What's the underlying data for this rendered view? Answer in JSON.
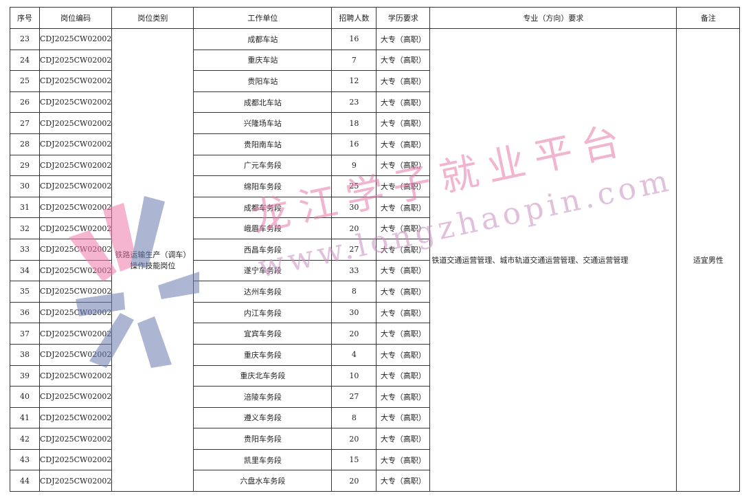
{
  "headers": [
    "序号",
    "岗位编码",
    "岗位类别",
    "工作单位",
    "招聘人数",
    "学历要求",
    "专业（方向）要求",
    "备注"
  ],
  "job_category": "铁路运输生产（调车）操作技能岗位",
  "major_requirement": "铁道交通运营管理、城市轨道交通运营管理、交通运营管理",
  "remark": "适宜男性",
  "rows": [
    {
      "no": "23",
      "code": "CDJ2025CW02002",
      "unit": "成都车站",
      "count": "16",
      "edu": "大专（高职）"
    },
    {
      "no": "24",
      "code": "CDJ2025CW02002",
      "unit": "重庆车站",
      "count": "7",
      "edu": "大专（高职）"
    },
    {
      "no": "25",
      "code": "CDJ2025CW02002",
      "unit": "贵阳车站",
      "count": "12",
      "edu": "大专（高职）"
    },
    {
      "no": "26",
      "code": "CDJ2025CW02002",
      "unit": "成都北车站",
      "count": "23",
      "edu": "大专（高职）"
    },
    {
      "no": "27",
      "code": "CDJ2025CW02002",
      "unit": "兴隆场车站",
      "count": "18",
      "edu": "大专（高职）"
    },
    {
      "no": "28",
      "code": "CDJ2025CW02002",
      "unit": "贵阳南车站",
      "count": "16",
      "edu": "大专（高职）"
    },
    {
      "no": "29",
      "code": "CDJ2025CW02002",
      "unit": "广元车务段",
      "count": "9",
      "edu": "大专（高职）"
    },
    {
      "no": "30",
      "code": "CDJ2025CW02002",
      "unit": "绵阳车务段",
      "count": "25",
      "edu": "大专（高职）"
    },
    {
      "no": "31",
      "code": "CDJ2025CW02002",
      "unit": "成都车务段",
      "count": "30",
      "edu": "大专（高职）"
    },
    {
      "no": "32",
      "code": "CDJ2025CW02002",
      "unit": "峨眉车务段",
      "count": "20",
      "edu": "大专（高职）"
    },
    {
      "no": "33",
      "code": "CDJ2025CW02002",
      "unit": "西昌车务段",
      "count": "27",
      "edu": "大专（高职）"
    },
    {
      "no": "34",
      "code": "CDJ2025CW02002",
      "unit": "遂宁车务段",
      "count": "33",
      "edu": "大专（高职）"
    },
    {
      "no": "35",
      "code": "CDJ2025CW02002",
      "unit": "达州车务段",
      "count": "8",
      "edu": "大专（高职）"
    },
    {
      "no": "36",
      "code": "CDJ2025CW02002",
      "unit": "内江车务段",
      "count": "30",
      "edu": "大专（高职）"
    },
    {
      "no": "37",
      "code": "CDJ2025CW02002",
      "unit": "宜宾车务段",
      "count": "20",
      "edu": "大专（高职）"
    },
    {
      "no": "38",
      "code": "CDJ2025CW02002",
      "unit": "重庆车务段",
      "count": "4",
      "edu": "大专（高职）"
    },
    {
      "no": "39",
      "code": "CDJ2025CW02002",
      "unit": "重庆北车务段",
      "count": "10",
      "edu": "大专（高职）"
    },
    {
      "no": "40",
      "code": "CDJ2025CW02002",
      "unit": "涪陵车务段",
      "count": "27",
      "edu": "大专（高职）"
    },
    {
      "no": "41",
      "code": "CDJ2025CW02002",
      "unit": "遵义车务段",
      "count": "8",
      "edu": "大专（高职）"
    },
    {
      "no": "42",
      "code": "CDJ2025CW02002",
      "unit": "贵阳车务段",
      "count": "20",
      "edu": "大专（高职）"
    },
    {
      "no": "43",
      "code": "CDJ2025CW02002",
      "unit": "凯里车务段",
      "count": "15",
      "edu": "大专（高职）"
    },
    {
      "no": "44",
      "code": "CDJ2025CW02002",
      "unit": "六盘水车务段",
      "count": "20",
      "edu": "大专（高职）"
    }
  ],
  "watermark": {
    "name": "龙江学子就业平台",
    "url": "www.longzhaopin.com"
  }
}
